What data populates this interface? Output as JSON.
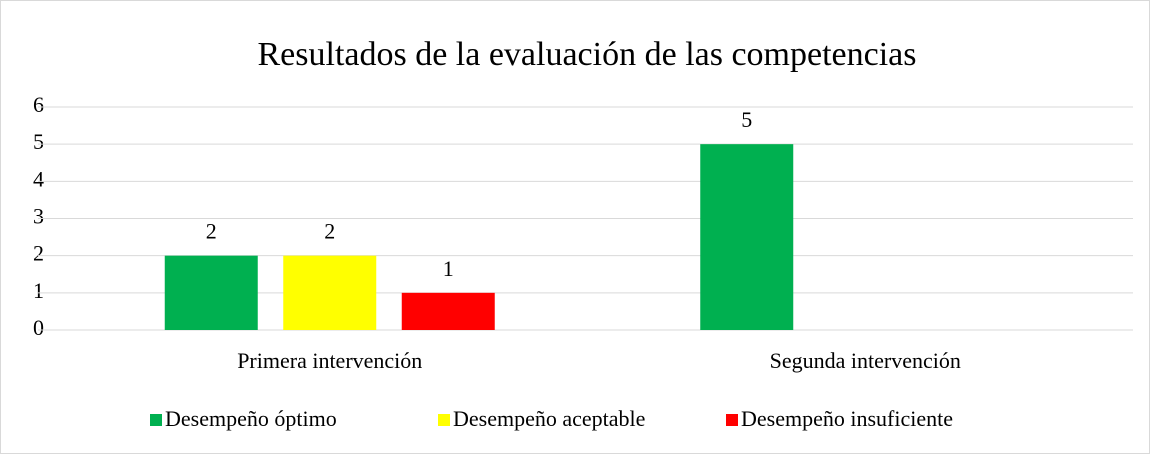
{
  "chart_data": {
    "type": "bar",
    "title": "Resultados de la evaluación de las competencias",
    "categories": [
      "Primera intervención",
      "Segunda intervención"
    ],
    "series": [
      {
        "name": "Desempeño óptimo",
        "color": "#00b050",
        "values": [
          2,
          5
        ]
      },
      {
        "name": "Desempeño aceptable",
        "color": "#ffff00",
        "values": [
          2,
          null
        ]
      },
      {
        "name": "Desempeño insuficiente",
        "color": "#ff0000",
        "values": [
          1,
          null
        ]
      }
    ],
    "ylim": [
      0,
      6
    ],
    "yticks": [
      0,
      1,
      2,
      3,
      4,
      5,
      6
    ],
    "grid": true,
    "legend": "bottom"
  }
}
